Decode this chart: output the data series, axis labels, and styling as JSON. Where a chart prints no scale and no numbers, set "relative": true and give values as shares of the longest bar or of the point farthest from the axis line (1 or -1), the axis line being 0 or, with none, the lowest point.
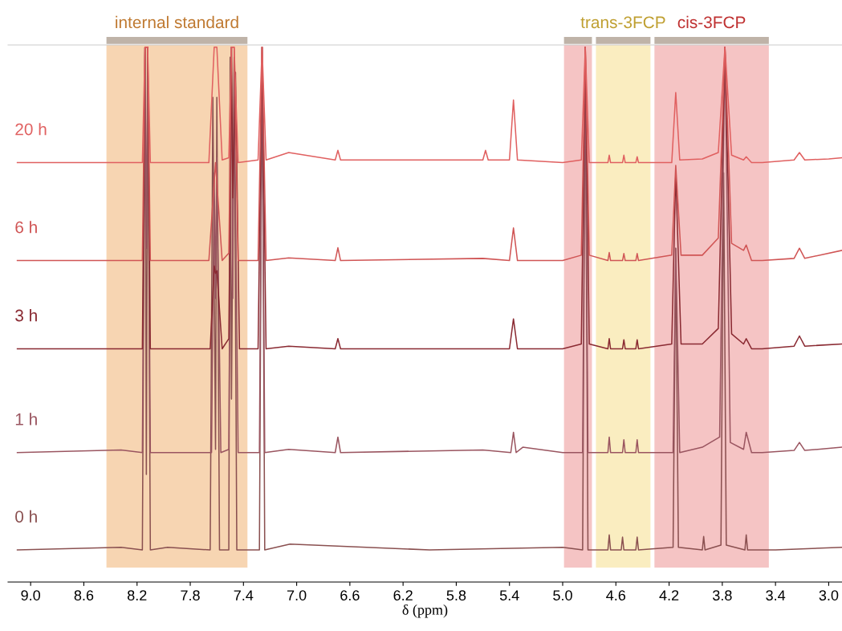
{
  "chart_data": {
    "type": "line",
    "relative": true,
    "xlabel": "δ (ppm)",
    "xlim": [
      9.17,
      2.9
    ],
    "xticks": [
      {
        "value": 9.0,
        "label": "9.0"
      },
      {
        "value": 8.6,
        "label": "8.6"
      },
      {
        "value": 8.2,
        "label": "8.2"
      },
      {
        "value": 7.8,
        "label": "7.8"
      },
      {
        "value": 7.4,
        "label": "7.4"
      },
      {
        "value": 7.0,
        "label": "7.0"
      },
      {
        "value": 6.6,
        "label": "6.6"
      },
      {
        "value": 6.2,
        "label": "6.2"
      },
      {
        "value": 5.8,
        "label": "5.8"
      },
      {
        "value": 5.4,
        "label": "5.4"
      },
      {
        "value": 5.0,
        "label": "5.0"
      },
      {
        "value": 4.6,
        "label": "4.6"
      },
      {
        "value": 4.2,
        "label": "4.2"
      },
      {
        "value": 3.8,
        "label": "3.8"
      },
      {
        "value": 3.4,
        "label": "3.4"
      },
      {
        "value": 3.0,
        "label": "3.0"
      }
    ],
    "grid": false,
    "legend": false,
    "marker": "none",
    "line_style": "solid",
    "bands": [
      {
        "axis": "x",
        "from": 8.43,
        "to": 7.37,
        "label": "internal standard",
        "color": "#f7d5b2"
      },
      {
        "axis": "x",
        "from": 4.99,
        "to": 4.78,
        "label": null,
        "color": "#f5c4c4"
      },
      {
        "axis": "x",
        "from": 4.75,
        "to": 4.34,
        "label": "trans-3FCP",
        "color": "#faedc0"
      },
      {
        "axis": "x",
        "from": 4.31,
        "to": 3.45,
        "label": "cis-3FCP",
        "color": "#f5c4c4"
      }
    ],
    "series": [
      {
        "name": "0 h",
        "color": "#8a5050",
        "x": [
          9.1,
          8.32,
          8.16,
          8.14,
          8.13,
          8.12,
          8.1,
          7.97,
          7.65,
          7.63,
          7.61,
          7.6,
          7.58,
          7.51,
          7.5,
          7.49,
          7.47,
          7.45,
          7.28,
          7.26,
          7.24,
          7.05,
          6.0,
          5.0,
          4.85,
          4.83,
          4.81,
          4.66,
          4.65,
          4.64,
          4.56,
          4.55,
          4.54,
          4.45,
          4.44,
          4.43,
          4.17,
          4.15,
          4.13,
          3.95,
          3.94,
          3.93,
          3.81,
          3.79,
          3.77,
          3.63,
          3.62,
          3.61,
          3.4,
          2.9
        ],
        "values": [
          0.06,
          0.065,
          0.06,
          1.0,
          0.201,
          1.0,
          0.06,
          0.065,
          0.06,
          0.906,
          0.248,
          0.906,
          0.06,
          0.06,
          0.981,
          0.342,
          0.981,
          0.06,
          0.06,
          1.0,
          0.06,
          0.071,
          0.06,
          0.065,
          0.06,
          1.0,
          0.06,
          0.06,
          0.088,
          0.06,
          0.06,
          0.084,
          0.06,
          0.06,
          0.084,
          0.06,
          0.065,
          0.624,
          0.065,
          0.06,
          0.085,
          0.06,
          0.069,
          0.765,
          0.069,
          0.06,
          0.088,
          0.06,
          0.06,
          0.065
        ]
      },
      {
        "name": "1 h",
        "color": "#9a5560",
        "x": [
          9.1,
          8.32,
          8.16,
          8.14,
          8.13,
          8.12,
          8.1,
          7.64,
          7.62,
          7.61,
          7.6,
          7.57,
          7.51,
          7.49,
          7.48,
          7.47,
          7.44,
          7.28,
          7.26,
          7.24,
          7.06,
          6.71,
          6.69,
          6.67,
          5.6,
          5.39,
          5.37,
          5.35,
          5.3,
          5.0,
          4.85,
          4.83,
          4.81,
          4.66,
          4.65,
          4.64,
          4.55,
          4.54,
          4.53,
          4.45,
          4.44,
          4.43,
          4.17,
          4.15,
          4.12,
          3.95,
          3.82,
          3.78,
          3.74,
          3.64,
          3.62,
          3.58,
          3.5,
          3.26,
          3.22,
          3.18,
          2.9
        ],
        "values": [
          0.242,
          0.247,
          0.242,
          1.0,
          0.624,
          1.0,
          0.242,
          0.242,
          0.765,
          0.53,
          0.793,
          0.242,
          0.248,
          1.0,
          0.53,
          0.953,
          0.242,
          0.242,
          1.0,
          0.242,
          0.248,
          0.242,
          0.271,
          0.242,
          0.247,
          0.242,
          0.28,
          0.242,
          0.252,
          0.242,
          0.242,
          1.0,
          0.242,
          0.242,
          0.271,
          0.242,
          0.242,
          0.266,
          0.242,
          0.242,
          0.266,
          0.242,
          0.242,
          0.624,
          0.242,
          0.252,
          0.271,
          1.0,
          0.261,
          0.248,
          0.28,
          0.242,
          0.242,
          0.246,
          0.261,
          0.246,
          0.252
        ]
      },
      {
        "name": "3 h",
        "color": "#8a2a32",
        "x": [
          9.1,
          8.16,
          8.14,
          8.12,
          8.1,
          7.65,
          7.62,
          7.61,
          7.6,
          7.56,
          7.51,
          7.49,
          7.48,
          7.46,
          7.43,
          7.29,
          7.26,
          7.23,
          7.06,
          6.71,
          6.69,
          6.67,
          5.4,
          5.37,
          5.34,
          5.0,
          4.86,
          4.83,
          4.8,
          4.66,
          4.65,
          4.64,
          4.55,
          4.54,
          4.53,
          4.45,
          4.44,
          4.43,
          4.18,
          4.15,
          4.11,
          3.95,
          3.83,
          3.78,
          3.73,
          3.64,
          3.62,
          3.58,
          3.5,
          3.26,
          3.22,
          3.18,
          2.9
        ],
        "values": [
          0.436,
          0.436,
          1.0,
          1.0,
          0.436,
          0.436,
          0.591,
          0.577,
          0.582,
          0.436,
          0.455,
          1.0,
          0.718,
          0.953,
          0.436,
          0.436,
          1.0,
          0.436,
          0.441,
          0.436,
          0.455,
          0.436,
          0.436,
          0.492,
          0.436,
          0.436,
          0.445,
          1.0,
          0.445,
          0.436,
          0.455,
          0.436,
          0.436,
          0.453,
          0.436,
          0.436,
          0.453,
          0.436,
          0.445,
          0.765,
          0.445,
          0.445,
          0.474,
          1.0,
          0.464,
          0.445,
          0.455,
          0.436,
          0.436,
          0.441,
          0.46,
          0.441,
          0.445
        ]
      },
      {
        "name": "6 h",
        "color": "#d05555",
        "x": [
          9.1,
          8.16,
          8.14,
          8.12,
          8.1,
          7.66,
          7.61,
          7.56,
          7.51,
          7.49,
          7.47,
          7.44,
          7.29,
          7.26,
          7.23,
          7.06,
          6.71,
          6.69,
          6.67,
          5.6,
          5.4,
          5.37,
          5.34,
          5.0,
          4.86,
          4.83,
          4.8,
          4.66,
          4.65,
          4.64,
          4.55,
          4.54,
          4.53,
          4.45,
          4.44,
          4.43,
          4.18,
          4.15,
          4.11,
          3.95,
          3.83,
          3.78,
          3.73,
          3.64,
          3.62,
          3.58,
          3.5,
          3.26,
          3.22,
          3.18,
          2.9
        ],
        "values": [
          0.601,
          0.601,
          1.0,
          1.0,
          0.601,
          0.601,
          0.784,
          0.601,
          0.615,
          1.0,
          1.0,
          0.601,
          0.601,
          1.0,
          0.601,
          0.606,
          0.601,
          0.625,
          0.601,
          0.605,
          0.601,
          0.662,
          0.601,
          0.601,
          0.611,
          1.0,
          0.611,
          0.601,
          0.616,
          0.601,
          0.601,
          0.614,
          0.601,
          0.601,
          0.614,
          0.601,
          0.611,
          0.779,
          0.611,
          0.611,
          0.643,
          1.0,
          0.633,
          0.62,
          0.63,
          0.601,
          0.601,
          0.605,
          0.624,
          0.605,
          0.62
        ]
      },
      {
        "name": "20 h",
        "color": "#e06060",
        "x": [
          9.1,
          8.16,
          8.14,
          8.12,
          8.1,
          7.66,
          7.62,
          7.6,
          7.56,
          7.51,
          7.49,
          7.47,
          7.44,
          7.29,
          7.26,
          7.23,
          7.06,
          6.71,
          6.69,
          6.67,
          5.6,
          5.58,
          5.56,
          5.4,
          5.37,
          5.34,
          5.0,
          4.86,
          4.83,
          4.8,
          4.66,
          4.65,
          4.64,
          4.55,
          4.54,
          4.53,
          4.45,
          4.44,
          4.43,
          4.18,
          4.15,
          4.12,
          3.95,
          3.83,
          3.78,
          3.73,
          3.64,
          3.62,
          3.58,
          3.5,
          3.26,
          3.22,
          3.18,
          3.0,
          2.9
        ],
        "values": [
          0.784,
          0.784,
          1.0,
          1.0,
          0.784,
          0.784,
          1.0,
          1.0,
          0.789,
          0.793,
          1.0,
          1.0,
          0.784,
          0.789,
          1.0,
          0.789,
          0.803,
          0.789,
          0.807,
          0.789,
          0.789,
          0.807,
          0.789,
          0.789,
          0.901,
          0.789,
          0.784,
          0.789,
          1.0,
          0.784,
          0.784,
          0.798,
          0.784,
          0.784,
          0.798,
          0.784,
          0.784,
          0.795,
          0.784,
          0.784,
          0.915,
          0.789,
          0.791,
          0.803,
          1.0,
          0.798,
          0.789,
          0.795,
          0.784,
          0.784,
          0.789,
          0.803,
          0.789,
          0.791,
          0.793
        ]
      }
    ]
  }
}
